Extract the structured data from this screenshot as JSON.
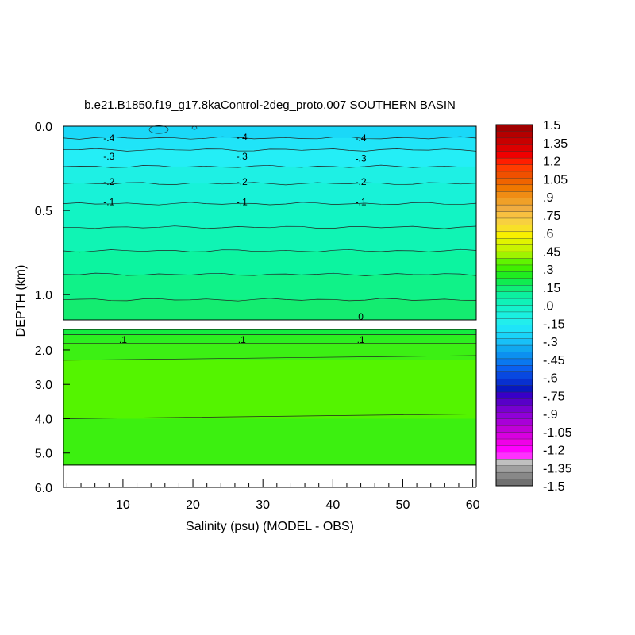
{
  "chart_data": {
    "type": "heatmap",
    "title": "b.e21.B1850.f19_g17.8kaControl-2deg_proto.007 SOUTHERN BASIN",
    "xlabel": "Salinity (psu) (MODEL - OBS)",
    "ylabel": "DEPTH (km)",
    "xlim": [
      1.5,
      60.5
    ],
    "x_ticks": [
      10,
      20,
      30,
      40,
      50,
      60
    ],
    "upper_panel": {
      "ylim": [
        0.0,
        1.15
      ],
      "y_ticks": [
        "0.0",
        "0.5",
        "1.0"
      ],
      "y_tick_values": [
        0.0,
        0.5,
        1.0
      ]
    },
    "lower_panel": {
      "ylim": [
        1.4,
        6.0
      ],
      "y_ticks": [
        "2.0",
        "3.0",
        "4.0",
        "5.0",
        "6.0"
      ],
      "y_tick_values": [
        2.0,
        3.0,
        4.0,
        5.0,
        6.0
      ],
      "data_bottom_depth": 5.35
    },
    "contour_labels": [
      {
        "text": ".-4",
        "x": 8,
        "depth": 0.07,
        "display": "-.4"
      },
      {
        "text": "-.4",
        "x": 27,
        "depth": 0.065
      },
      {
        "text": "-.4",
        "x": 44,
        "depth": 0.07
      },
      {
        "text": "-.3",
        "x": 8,
        "depth": 0.18
      },
      {
        "text": "-.3",
        "x": 27,
        "depth": 0.18
      },
      {
        "text": "-.3",
        "x": 44,
        "depth": 0.19
      },
      {
        "text": "-.2",
        "x": 8,
        "depth": 0.33
      },
      {
        "text": "-.2",
        "x": 27,
        "depth": 0.33
      },
      {
        "text": "-.2",
        "x": 44,
        "depth": 0.33
      },
      {
        "text": "-.1",
        "x": 8,
        "depth": 0.45
      },
      {
        "text": "-.1",
        "x": 27,
        "depth": 0.45
      },
      {
        "text": "-.1",
        "x": 44,
        "depth": 0.45
      },
      {
        "text": "0",
        "x": 44,
        "depth": 1.13
      },
      {
        "text": ".1",
        "x": 10,
        "depth": 1.7
      },
      {
        "text": ".1",
        "x": 27,
        "depth": 1.7
      },
      {
        "text": ".1",
        "x": 44,
        "depth": 1.7
      }
    ],
    "bands_upper": [
      {
        "depth_top": 0.0,
        "depth_bottom": 0.07,
        "color": "#1ad8f8"
      },
      {
        "depth_top": 0.07,
        "depth_bottom": 0.14,
        "color": "#20e4f8"
      },
      {
        "depth_top": 0.14,
        "depth_bottom": 0.24,
        "color": "#24eef6"
      },
      {
        "depth_top": 0.24,
        "depth_bottom": 0.34,
        "color": "#1ef0e4"
      },
      {
        "depth_top": 0.34,
        "depth_bottom": 0.46,
        "color": "#18f2d8"
      },
      {
        "depth_top": 0.46,
        "depth_bottom": 0.6,
        "color": "#12f4c4"
      },
      {
        "depth_top": 0.6,
        "depth_bottom": 0.74,
        "color": "#10f4b4"
      },
      {
        "depth_top": 0.74,
        "depth_bottom": 0.88,
        "color": "#0cf4a0"
      },
      {
        "depth_top": 0.88,
        "depth_bottom": 1.03,
        "color": "#10f288"
      },
      {
        "depth_top": 1.03,
        "depth_bottom": 1.15,
        "color": "#14ec70"
      }
    ],
    "bands_lower": [
      {
        "depth_top": 1.4,
        "depth_bottom": 1.55,
        "color": "#14ec40"
      },
      {
        "depth_top": 1.55,
        "depth_bottom": 1.8,
        "color": "#2cf020"
      },
      {
        "depth_top": 1.8,
        "depth_bottom": 2.3,
        "color": "#3cf014"
      },
      {
        "depth_top": 2.3,
        "depth_bottom": 4.0,
        "color": "#54f400"
      },
      {
        "depth_top": 4.0,
        "depth_bottom": 5.35,
        "color": "#3cf010"
      }
    ],
    "colorbar": {
      "labels": [
        "1.5",
        "1.35",
        "1.2",
        "1.05",
        ".9",
        ".75",
        ".6",
        ".45",
        ".3",
        ".15",
        ".0",
        "-.15",
        "-.3",
        "-.45",
        "-.6",
        "-.75",
        "-.9",
        "-1.05",
        "-1.2",
        "-1.35",
        "-1.5"
      ],
      "colors": [
        "#a00000",
        "#b40000",
        "#c80000",
        "#dc0000",
        "#f00000",
        "#ff1e00",
        "#ff3c00",
        "#f05000",
        "#f06400",
        "#f07800",
        "#f08c14",
        "#f0a028",
        "#f0ac40",
        "#f8c040",
        "#f8d040",
        "#f8e028",
        "#f8f000",
        "#e0f400",
        "#c8f400",
        "#a0f400",
        "#60f400",
        "#40f000",
        "#20ec20",
        "#10ec50",
        "#10ee78",
        "#0cf0a0",
        "#10f2b8",
        "#14f2cc",
        "#1af0e0",
        "#22eeec",
        "#1ee4f8",
        "#1ad4f8",
        "#18c0f8",
        "#10a8f0",
        "#0c90f0",
        "#0a78f0",
        "#0a60f0",
        "#0848e0",
        "#0830d0",
        "#0818c0",
        "#3800c8",
        "#5800c8",
        "#7800d0",
        "#9000d8",
        "#a800d8",
        "#c000d8",
        "#d800e0",
        "#f000e8",
        "#ff00ff",
        "#ff30ff",
        "#c0c0c0",
        "#a0a0a0",
        "#888888",
        "#707070"
      ]
    }
  }
}
